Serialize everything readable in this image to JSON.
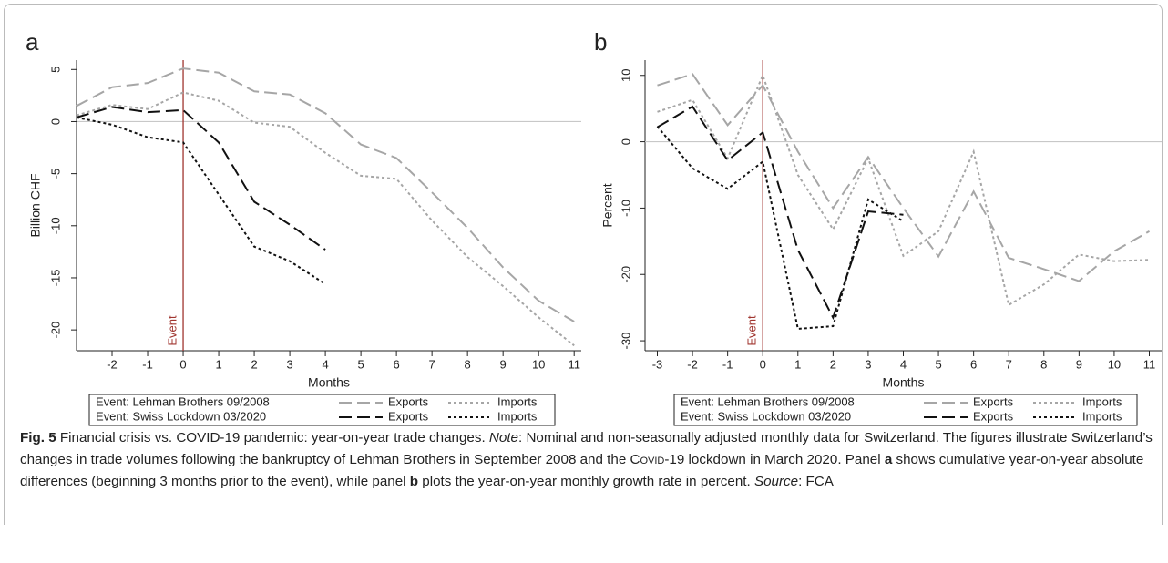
{
  "chart_data": [
    {
      "type": "line",
      "panel_label": "a",
      "y_label": "Billion CHF",
      "x_label": "Months",
      "x": [
        -3,
        -2,
        -1,
        0,
        1,
        2,
        3,
        4,
        5,
        6,
        7,
        8,
        9,
        10,
        11
      ],
      "xlim": [
        -3,
        11.2
      ],
      "xticks": [
        -2,
        -1,
        0,
        1,
        2,
        3,
        4,
        5,
        6,
        7,
        8,
        9,
        10,
        11
      ],
      "ylim": [
        -22,
        5.9
      ],
      "yticks": [
        5,
        0,
        -5,
        -10,
        -15,
        -20
      ],
      "reference_line": 0,
      "reference_color": "#c8c8c8",
      "event_line": {
        "x": 0,
        "label": "Event",
        "color": "#a0352f"
      },
      "groups": [
        {
          "name": "Event: Lehman Brothers 09/2008",
          "series": [
            {
              "name": "Exports",
              "color": "#a6a6a6",
              "dash": "long",
              "values": [
                1.5,
                3.3,
                3.7,
                5.1,
                4.7,
                2.9,
                2.6,
                0.8,
                -2.2,
                -3.5,
                -6.8,
                -10.2,
                -14.0,
                -17.2,
                -19.2
              ]
            },
            {
              "name": "Imports",
              "color": "#a6a6a6",
              "dash": "dot",
              "values": [
                0.6,
                1.6,
                1.2,
                2.8,
                2.0,
                -0.1,
                -0.5,
                -3.0,
                -5.2,
                -5.5,
                -9.5,
                -13.0,
                -15.8,
                -18.8,
                -21.5
              ]
            }
          ]
        },
        {
          "name": "Event: Swiss Lockdown 03/2020",
          "series": [
            {
              "name": "Exports",
              "color": "#111111",
              "dash": "long",
              "values": [
                0.4,
                1.4,
                0.9,
                1.1,
                -2.0,
                -7.7,
                -9.9,
                -12.3,
                null,
                null,
                null,
                null,
                null,
                null,
                null
              ]
            },
            {
              "name": "Imports",
              "color": "#111111",
              "dash": "dot",
              "values": [
                0.4,
                -0.3,
                -1.5,
                -2.0,
                -7.0,
                -12.0,
                -13.4,
                -15.6,
                null,
                null,
                null,
                null,
                null,
                null,
                null
              ]
            }
          ]
        }
      ]
    },
    {
      "type": "line",
      "panel_label": "b",
      "y_label": "Percent",
      "x_label": "Months",
      "x": [
        -3,
        -2,
        -1,
        0,
        1,
        2,
        3,
        4,
        5,
        6,
        7,
        8,
        9,
        10,
        11
      ],
      "xlim": [
        -3.35,
        11.35
      ],
      "xticks": [
        -3,
        -2,
        -1,
        0,
        1,
        2,
        3,
        4,
        5,
        6,
        7,
        8,
        9,
        10,
        11
      ],
      "ylim": [
        -31.5,
        12.3
      ],
      "yticks": [
        10,
        0,
        -10,
        -20,
        -30
      ],
      "reference_line": 0,
      "reference_color": "#c8c8c8",
      "event_line": {
        "x": 0,
        "label": "Event",
        "color": "#a0352f"
      },
      "groups": [
        {
          "name": "Event: Lehman Brothers 09/2008",
          "series": [
            {
              "name": "Exports",
              "color": "#a6a6a6",
              "dash": "long",
              "values": [
                8.5,
                10.2,
                2.5,
                8.5,
                -1.5,
                -10.0,
                -2.3,
                -10.0,
                -17.3,
                -7.5,
                -17.5,
                -19.2,
                -21.0,
                -16.5,
                -13.5
              ]
            },
            {
              "name": "Imports",
              "color": "#a6a6a6",
              "dash": "dot",
              "values": [
                4.5,
                6.3,
                -2.5,
                10.0,
                -5.0,
                -13.2,
                -2.5,
                -17.2,
                -13.5,
                -1.5,
                -24.6,
                -21.5,
                -17.0,
                -18.0,
                -17.8
              ]
            }
          ]
        },
        {
          "name": "Event: Swiss Lockdown 03/2020",
          "series": [
            {
              "name": "Exports",
              "color": "#111111",
              "dash": "long",
              "values": [
                2.2,
                5.3,
                -2.8,
                1.4,
                -16.3,
                -26.5,
                -10.5,
                -11.0,
                null,
                null,
                null,
                null,
                null,
                null,
                null
              ]
            },
            {
              "name": "Imports",
              "color": "#111111",
              "dash": "dot",
              "values": [
                2.3,
                -4.0,
                -7.1,
                -3.0,
                -28.2,
                -27.8,
                -8.7,
                -12.0,
                null,
                null,
                null,
                null,
                null,
                null,
                null
              ]
            }
          ]
        }
      ]
    }
  ],
  "caption": {
    "segments": [
      {
        "text": "Fig. 5",
        "style": "bold"
      },
      {
        "text": " Financial crisis vs. COVID-19 pandemic: year-on-year trade changes. "
      },
      {
        "text": "Note",
        "style": "italic"
      },
      {
        "text": ": Nominal and non-seasonally adjusted monthly data for Switzerland. The figures illustrate Switzerland’s changes in trade volumes following the bankruptcy of Lehman Brothers in September 2008 and the "
      },
      {
        "text": "Covid-19",
        "style": "smallcaps"
      },
      {
        "text": " lockdown in March 2020. Panel "
      },
      {
        "text": "a",
        "style": "bold"
      },
      {
        "text": " shows cumulative year-on-year absolute differences (beginning 3 months prior to the event), while panel "
      },
      {
        "text": "b",
        "style": "bold"
      },
      {
        "text": " plots the year-on-year monthly growth rate in percent. "
      },
      {
        "text": "Source",
        "style": "italic"
      },
      {
        "text": ": FCA"
      }
    ]
  }
}
